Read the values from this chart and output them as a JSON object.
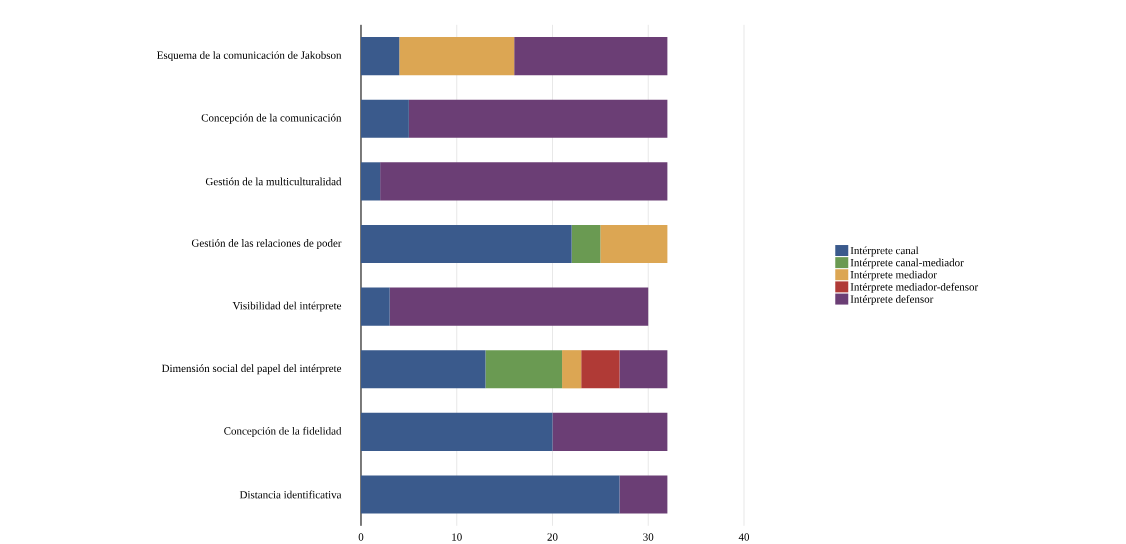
{
  "chart_data": {
    "type": "bar",
    "orientation": "horizontal",
    "stacked": true,
    "categories": [
      "Esquema de la comunicación de Jakobson",
      "Concepción de la comunicación",
      "Gestión de la multiculturalidad",
      "Gestión de las relaciones de poder",
      "Visibilidad del intérprete",
      "Dimensión social del papel del intérprete",
      "Concepción de la fidelidad",
      "Distancia identificativa"
    ],
    "series": [
      {
        "name": "Intérprete canal",
        "color": "#3a5a8c",
        "values": [
          4,
          5,
          2,
          22,
          3,
          13,
          20,
          27
        ]
      },
      {
        "name": "Intérprete canal-mediador",
        "color": "#6a9a52",
        "values": [
          0,
          0,
          0,
          3,
          0,
          8,
          0,
          0
        ]
      },
      {
        "name": "Intérprete mediador",
        "color": "#dca653",
        "values": [
          12,
          0,
          0,
          7,
          0,
          2,
          0,
          0
        ]
      },
      {
        "name": "Intérprete mediador-defensor",
        "color": "#b03a36",
        "values": [
          0,
          0,
          0,
          0,
          0,
          4,
          0,
          0
        ]
      },
      {
        "name": "Intérprete defensor",
        "color": "#6b3e75",
        "values": [
          16,
          27,
          30,
          0,
          27,
          5,
          12,
          5
        ]
      }
    ],
    "xlim": [
      0,
      40
    ],
    "xticks": [
      0,
      10,
      20,
      30,
      40
    ],
    "grid": "x",
    "legend": "right"
  }
}
